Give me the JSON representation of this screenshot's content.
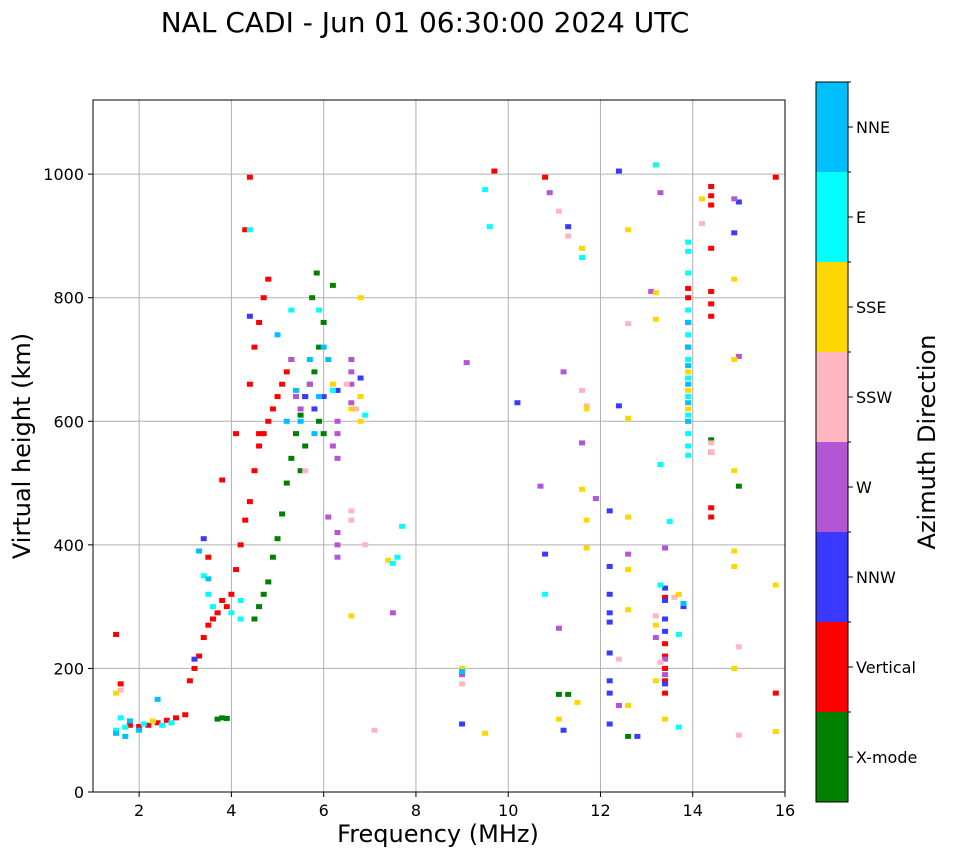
{
  "chart_data": {
    "type": "scatter",
    "title": "NAL CADI - Jun 01 06:30:00 2024 UTC",
    "xlabel": "Frequency (MHz)",
    "ylabel": "Virtual height (km)",
    "xlim": [
      1,
      16
    ],
    "ylim": [
      0,
      1120
    ],
    "xticks": [
      2,
      4,
      6,
      8,
      10,
      12,
      14,
      16
    ],
    "yticks": [
      0,
      200,
      400,
      600,
      800,
      1000
    ],
    "grid": true,
    "colorbar_label": "Azimuth Direction",
    "categories": [
      {
        "name": "X-mode",
        "color": "#008000"
      },
      {
        "name": "Vertical",
        "color": "#ff0000"
      },
      {
        "name": "NNW",
        "color": "#3a3aff"
      },
      {
        "name": "W",
        "color": "#b455d6"
      },
      {
        "name": "SSW",
        "color": "#ffb6c1"
      },
      {
        "name": "SSE",
        "color": "#ffd700"
      },
      {
        "name": "E",
        "color": "#00ffff"
      },
      {
        "name": "NNE",
        "color": "#00bfff"
      }
    ],
    "series": [
      {
        "name": "X-mode",
        "points": [
          [
            4.5,
            280
          ],
          [
            4.6,
            300
          ],
          [
            4.7,
            320
          ],
          [
            4.8,
            340
          ],
          [
            4.9,
            380
          ],
          [
            5.0,
            410
          ],
          [
            5.1,
            450
          ],
          [
            5.2,
            500
          ],
          [
            5.3,
            540
          ],
          [
            5.4,
            580
          ],
          [
            5.5,
            610
          ],
          [
            5.6,
            640
          ],
          [
            5.7,
            660
          ],
          [
            5.8,
            680
          ],
          [
            5.9,
            720
          ],
          [
            6.0,
            760
          ],
          [
            5.75,
            800
          ],
          [
            5.85,
            840
          ],
          [
            6.2,
            820
          ],
          [
            5.6,
            560
          ],
          [
            5.5,
            520
          ],
          [
            5.9,
            600
          ],
          [
            6.0,
            580
          ],
          [
            3.7,
            118
          ],
          [
            3.8,
            120
          ],
          [
            3.9,
            119
          ],
          [
            11.1,
            158
          ],
          [
            11.3,
            158
          ],
          [
            12.6,
            90
          ],
          [
            14.4,
            570
          ],
          [
            15.0,
            495
          ]
        ]
      },
      {
        "name": "Vertical",
        "points": [
          [
            1.5,
            255
          ],
          [
            1.6,
            175
          ],
          [
            1.8,
            108
          ],
          [
            2.0,
            106
          ],
          [
            2.2,
            108
          ],
          [
            2.4,
            112
          ],
          [
            2.6,
            116
          ],
          [
            2.8,
            120
          ],
          [
            3.0,
            125
          ],
          [
            3.1,
            180
          ],
          [
            3.2,
            200
          ],
          [
            3.3,
            220
          ],
          [
            3.4,
            250
          ],
          [
            3.5,
            270
          ],
          [
            3.6,
            280
          ],
          [
            3.7,
            290
          ],
          [
            3.8,
            310
          ],
          [
            3.9,
            300
          ],
          [
            4.0,
            320
          ],
          [
            4.1,
            360
          ],
          [
            4.2,
            400
          ],
          [
            4.3,
            440
          ],
          [
            4.4,
            470
          ],
          [
            4.5,
            520
          ],
          [
            4.6,
            560
          ],
          [
            4.7,
            580
          ],
          [
            4.8,
            600
          ],
          [
            4.9,
            620
          ],
          [
            5.0,
            640
          ],
          [
            5.1,
            660
          ],
          [
            5.2,
            680
          ],
          [
            5.3,
            700
          ],
          [
            4.4,
            660
          ],
          [
            4.5,
            720
          ],
          [
            4.6,
            760
          ],
          [
            4.7,
            800
          ],
          [
            4.8,
            830
          ],
          [
            4.4,
            995
          ],
          [
            4.3,
            910
          ],
          [
            4.6,
            580
          ],
          [
            3.5,
            380
          ],
          [
            3.8,
            505
          ],
          [
            4.1,
            580
          ],
          [
            9.7,
            1005
          ],
          [
            10.8,
            995
          ],
          [
            13.4,
            240
          ],
          [
            13.4,
            220
          ],
          [
            13.4,
            200
          ],
          [
            13.4,
            180
          ],
          [
            13.4,
            160
          ],
          [
            13.4,
            315
          ],
          [
            13.9,
            815
          ],
          [
            13.9,
            800
          ],
          [
            13.9,
            760
          ],
          [
            13.9,
            720
          ],
          [
            14.4,
            810
          ],
          [
            14.4,
            790
          ],
          [
            14.4,
            770
          ],
          [
            14.4,
            880
          ],
          [
            14.4,
            980
          ],
          [
            14.4,
            965
          ],
          [
            14.4,
            950
          ],
          [
            14.4,
            460
          ],
          [
            14.4,
            445
          ],
          [
            14.4,
            550
          ],
          [
            15.8,
            160
          ],
          [
            15.8,
            995
          ]
        ]
      },
      {
        "name": "NNW",
        "points": [
          [
            3.4,
            410
          ],
          [
            3.2,
            215
          ],
          [
            4.4,
            770
          ],
          [
            5.6,
            640
          ],
          [
            5.8,
            620
          ],
          [
            6.0,
            640
          ],
          [
            6.3,
            650
          ],
          [
            6.8,
            670
          ],
          [
            10.2,
            630
          ],
          [
            10.8,
            385
          ],
          [
            11.3,
            915
          ],
          [
            12.2,
            455
          ],
          [
            12.2,
            365
          ],
          [
            12.2,
            320
          ],
          [
            12.2,
            290
          ],
          [
            12.2,
            275
          ],
          [
            12.2,
            225
          ],
          [
            12.2,
            180
          ],
          [
            12.2,
            160
          ],
          [
            12.2,
            110
          ],
          [
            12.4,
            1005
          ],
          [
            12.4,
            625
          ],
          [
            12.8,
            90
          ],
          [
            13.4,
            330
          ],
          [
            13.4,
            310
          ],
          [
            13.4,
            280
          ],
          [
            13.4,
            260
          ],
          [
            13.4,
            175
          ],
          [
            13.8,
            300
          ],
          [
            14.9,
            905
          ],
          [
            15.0,
            955
          ],
          [
            9.0,
            110
          ],
          [
            11.2,
            100
          ]
        ]
      },
      {
        "name": "W",
        "points": [
          [
            5.4,
            640
          ],
          [
            5.5,
            620
          ],
          [
            5.7,
            660
          ],
          [
            6.2,
            560
          ],
          [
            6.3,
            600
          ],
          [
            6.3,
            580
          ],
          [
            6.3,
            540
          ],
          [
            6.3,
            420
          ],
          [
            6.3,
            400
          ],
          [
            6.3,
            380
          ],
          [
            6.1,
            445
          ],
          [
            6.6,
            700
          ],
          [
            6.6,
            680
          ],
          [
            6.6,
            660
          ],
          [
            6.6,
            630
          ],
          [
            5.3,
            700
          ],
          [
            7.5,
            290
          ],
          [
            9.1,
            695
          ],
          [
            10.7,
            495
          ],
          [
            10.9,
            970
          ],
          [
            11.2,
            680
          ],
          [
            11.6,
            565
          ],
          [
            11.9,
            475
          ],
          [
            12.6,
            385
          ],
          [
            13.1,
            810
          ],
          [
            13.3,
            970
          ],
          [
            13.4,
            395
          ],
          [
            13.2,
            250
          ],
          [
            13.4,
            215
          ],
          [
            13.4,
            190
          ],
          [
            14.9,
            960
          ],
          [
            15.0,
            705
          ],
          [
            9.0,
            190
          ],
          [
            11.1,
            265
          ],
          [
            12.4,
            140
          ]
        ]
      },
      {
        "name": "SSW",
        "points": [
          [
            1.6,
            165
          ],
          [
            5.6,
            520
          ],
          [
            6.5,
            660
          ],
          [
            6.7,
            620
          ],
          [
            6.8,
            640
          ],
          [
            6.6,
            455
          ],
          [
            6.6,
            440
          ],
          [
            6.9,
            400
          ],
          [
            11.1,
            940
          ],
          [
            11.3,
            900
          ],
          [
            11.6,
            650
          ],
          [
            11.7,
            625
          ],
          [
            12.6,
            758
          ],
          [
            12.4,
            215
          ],
          [
            12.6,
            445
          ],
          [
            13.2,
            285
          ],
          [
            13.3,
            210
          ],
          [
            13.6,
            315
          ],
          [
            14.2,
            920
          ],
          [
            14.4,
            565
          ],
          [
            14.4,
            550
          ],
          [
            15.0,
            235
          ],
          [
            15.0,
            92
          ],
          [
            7.1,
            100
          ],
          [
            9.0,
            175
          ]
        ]
      },
      {
        "name": "SSE",
        "points": [
          [
            1.5,
            160
          ],
          [
            2.3,
            115
          ],
          [
            6.2,
            660
          ],
          [
            6.6,
            620
          ],
          [
            6.8,
            600
          ],
          [
            6.8,
            640
          ],
          [
            6.8,
            800
          ],
          [
            6.6,
            285
          ],
          [
            7.4,
            375
          ],
          [
            11.1,
            118
          ],
          [
            11.5,
            145
          ],
          [
            11.6,
            880
          ],
          [
            11.7,
            620
          ],
          [
            11.7,
            440
          ],
          [
            11.7,
            395
          ],
          [
            11.6,
            490
          ],
          [
            12.6,
            910
          ],
          [
            12.6,
            605
          ],
          [
            12.6,
            445
          ],
          [
            12.6,
            295
          ],
          [
            12.6,
            360
          ],
          [
            12.6,
            140
          ],
          [
            13.2,
            1015
          ],
          [
            13.2,
            808
          ],
          [
            13.2,
            765
          ],
          [
            13.2,
            180
          ],
          [
            13.2,
            270
          ],
          [
            13.4,
            118
          ],
          [
            13.7,
            320
          ],
          [
            13.9,
            700
          ],
          [
            13.9,
            680
          ],
          [
            13.9,
            650
          ],
          [
            13.9,
            620
          ],
          [
            13.9,
            600
          ],
          [
            14.2,
            960
          ],
          [
            14.9,
            830
          ],
          [
            14.9,
            700
          ],
          [
            14.9,
            520
          ],
          [
            14.9,
            390
          ],
          [
            14.9,
            365
          ],
          [
            14.9,
            200
          ],
          [
            15.8,
            335
          ],
          [
            15.8,
            98
          ],
          [
            9.0,
            200
          ],
          [
            9.5,
            95
          ]
        ]
      },
      {
        "name": "E",
        "points": [
          [
            1.5,
            100
          ],
          [
            1.6,
            120
          ],
          [
            1.7,
            105
          ],
          [
            2.1,
            110
          ],
          [
            2.5,
            108
          ],
          [
            2.7,
            112
          ],
          [
            3.4,
            350
          ],
          [
            3.6,
            300
          ],
          [
            3.5,
            320
          ],
          [
            4.0,
            290
          ],
          [
            4.2,
            280
          ],
          [
            4.2,
            310
          ],
          [
            4.4,
            910
          ],
          [
            5.3,
            780
          ],
          [
            5.9,
            780
          ],
          [
            6.2,
            650
          ],
          [
            6.9,
            610
          ],
          [
            7.5,
            370
          ],
          [
            7.6,
            380
          ],
          [
            7.7,
            430
          ],
          [
            9.5,
            975
          ],
          [
            9.6,
            915
          ],
          [
            11.6,
            865
          ],
          [
            13.2,
            1015
          ],
          [
            13.3,
            530
          ],
          [
            13.3,
            335
          ],
          [
            13.5,
            438
          ],
          [
            13.7,
            105
          ],
          [
            13.7,
            255
          ],
          [
            13.9,
            890
          ],
          [
            13.9,
            875
          ],
          [
            13.9,
            840
          ],
          [
            13.9,
            780
          ],
          [
            13.9,
            740
          ],
          [
            13.9,
            700
          ],
          [
            13.9,
            670
          ],
          [
            13.9,
            640
          ],
          [
            13.9,
            610
          ],
          [
            13.9,
            580
          ],
          [
            13.9,
            560
          ],
          [
            13.9,
            545
          ],
          [
            10.8,
            320
          ]
        ]
      },
      {
        "name": "NNE",
        "points": [
          [
            1.5,
            95
          ],
          [
            1.7,
            90
          ],
          [
            1.8,
            115
          ],
          [
            2.0,
            100
          ],
          [
            2.4,
            150
          ],
          [
            3.3,
            390
          ],
          [
            3.5,
            345
          ],
          [
            5.0,
            740
          ],
          [
            5.4,
            650
          ],
          [
            5.7,
            700
          ],
          [
            5.9,
            640
          ],
          [
            6.0,
            720
          ],
          [
            6.1,
            700
          ],
          [
            5.8,
            580
          ],
          [
            5.5,
            600
          ],
          [
            5.2,
            600
          ],
          [
            13.9,
            760
          ],
          [
            13.9,
            720
          ],
          [
            13.9,
            690
          ],
          [
            13.9,
            660
          ],
          [
            13.9,
            630
          ],
          [
            13.9,
            600
          ],
          [
            13.8,
            305
          ],
          [
            9.0,
            195
          ]
        ]
      }
    ]
  }
}
